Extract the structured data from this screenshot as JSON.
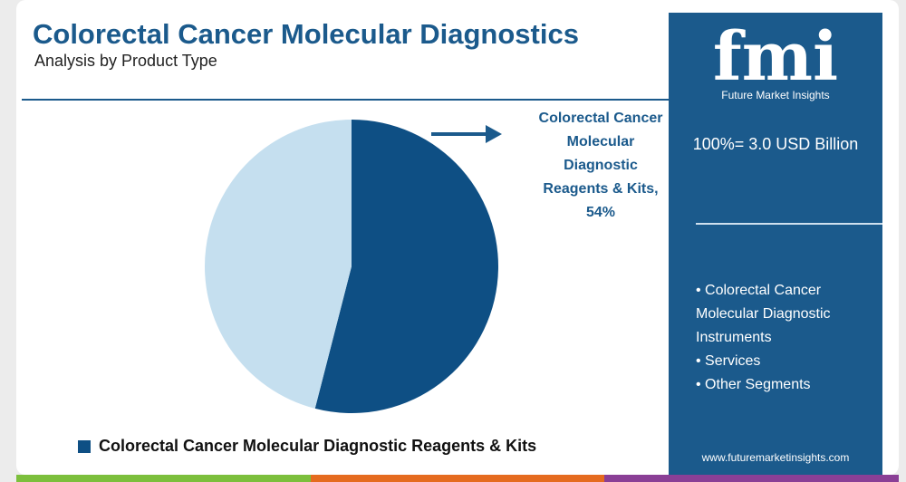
{
  "title": "Colorectal Cancer Molecular Diagnostics",
  "subtitle": "Analysis by Product Type",
  "callout": {
    "lines": [
      "Colorectal Cancer",
      "Molecular",
      "Diagnostic",
      "Reagents & Kits,",
      "54%"
    ]
  },
  "legend": {
    "label": "Colorectal Cancer Molecular Diagnostic Reagents & Kits"
  },
  "panel": {
    "logo_text": "fmi",
    "logo_tagline": "Future Market Insights",
    "total": "100%= 3.0 USD Billion",
    "other_segments": [
      "• Colorectal Cancer Molecular Diagnostic Instruments",
      "• Services",
      "• Other Segments"
    ],
    "website": "www.futuremarketinsights.com"
  },
  "colors": {
    "brand_blue": "#1b5a8c",
    "slice_main": "#0e4f84",
    "slice_rest": "#c5dfef",
    "bar": [
      "#7cbf3c",
      "#e56b1f",
      "#8a3f96"
    ]
  },
  "chart_data": {
    "type": "pie",
    "slices": [
      {
        "label": "Colorectal Cancer Molecular Diagnostic Reagents & Kits",
        "value": 54
      },
      {
        "label": "",
        "value": 46
      }
    ]
  }
}
